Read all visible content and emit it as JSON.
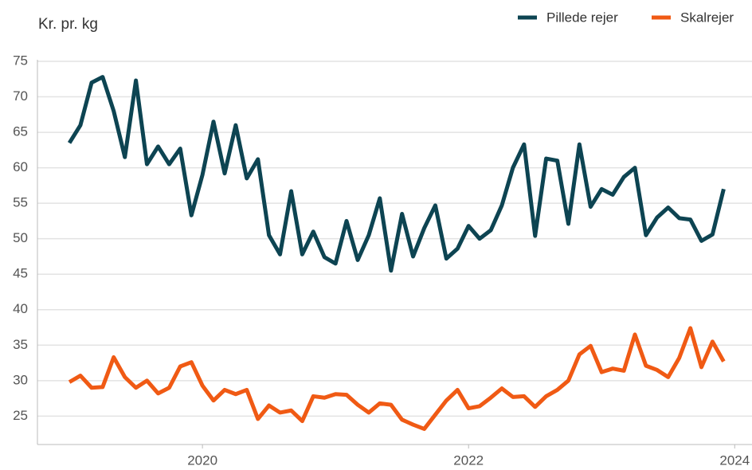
{
  "chart_data": {
    "type": "line",
    "y_label": "Kr. pr. kg",
    "x": [
      2019,
      2019.083,
      2019.167,
      2019.25,
      2019.333,
      2019.417,
      2019.5,
      2019.583,
      2019.667,
      2019.75,
      2019.833,
      2019.917,
      2020,
      2020.083,
      2020.167,
      2020.25,
      2020.333,
      2020.417,
      2020.5,
      2020.583,
      2020.667,
      2020.75,
      2020.833,
      2020.917,
      2021,
      2021.083,
      2021.167,
      2021.25,
      2021.333,
      2021.417,
      2021.5,
      2021.583,
      2021.667,
      2021.75,
      2021.833,
      2021.917,
      2022,
      2022.083,
      2022.167,
      2022.25,
      2022.333,
      2022.417,
      2022.5,
      2022.583,
      2022.667,
      2022.75,
      2022.833,
      2022.917,
      2023,
      2023.083,
      2023.167,
      2023.25,
      2023.333,
      2023.417,
      2023.5,
      2023.583,
      2023.667,
      2023.75,
      2023.833,
      2023.917
    ],
    "series": [
      {
        "name": "Pillede rejer",
        "color": "#0d4452",
        "values": [
          63.5,
          66,
          72,
          72.8,
          68,
          61.5,
          72.3,
          60.5,
          63,
          60.5,
          62.7,
          53.3,
          59,
          66.5,
          59.2,
          66,
          58.5,
          61.2,
          50.5,
          47.8,
          56.7,
          47.8,
          51,
          47.4,
          46.5,
          52.5,
          47,
          50.5,
          55.7,
          45.5,
          53.5,
          47.5,
          51.5,
          54.7,
          47.2,
          48.6,
          51.8,
          50,
          51.2,
          54.7,
          60,
          63.3,
          50.4,
          61.3,
          61,
          52.1,
          63.3,
          54.5,
          57,
          56.2,
          58.7,
          60,
          50.5,
          53,
          54.4,
          52.9,
          52.7,
          49.7,
          50.6,
          57
        ]
      },
      {
        "name": "Skalrejer",
        "color": "#f05a14",
        "values": [
          29.8,
          30.7,
          29,
          29.1,
          33.3,
          30.5,
          29,
          30,
          28.2,
          29,
          32,
          32.6,
          29.3,
          27.2,
          28.7,
          28.1,
          28.7,
          24.6,
          26.5,
          25.5,
          25.8,
          24.3,
          27.8,
          27.6,
          28.1,
          28,
          26.6,
          25.5,
          26.8,
          26.6,
          24.5,
          23.8,
          23.2,
          25.2,
          27.2,
          28.7,
          26.1,
          26.4,
          27.6,
          28.9,
          27.7,
          27.8,
          26.3,
          27.8,
          28.7,
          30,
          33.7,
          34.9,
          31.2,
          31.7,
          31.4,
          36.5,
          32.1,
          31.5,
          30.5,
          33.2,
          37.4,
          31.9,
          35.5,
          32.7
        ]
      }
    ],
    "xlim": [
      2018.76,
      2024.13
    ],
    "xticks": [
      2020,
      2022,
      2024
    ],
    "ylim": [
      21,
      75
    ],
    "yticks": [
      25,
      30,
      35,
      40,
      45,
      50,
      55,
      60,
      65,
      70,
      75
    ],
    "grid": true,
    "legend": "top-right"
  }
}
